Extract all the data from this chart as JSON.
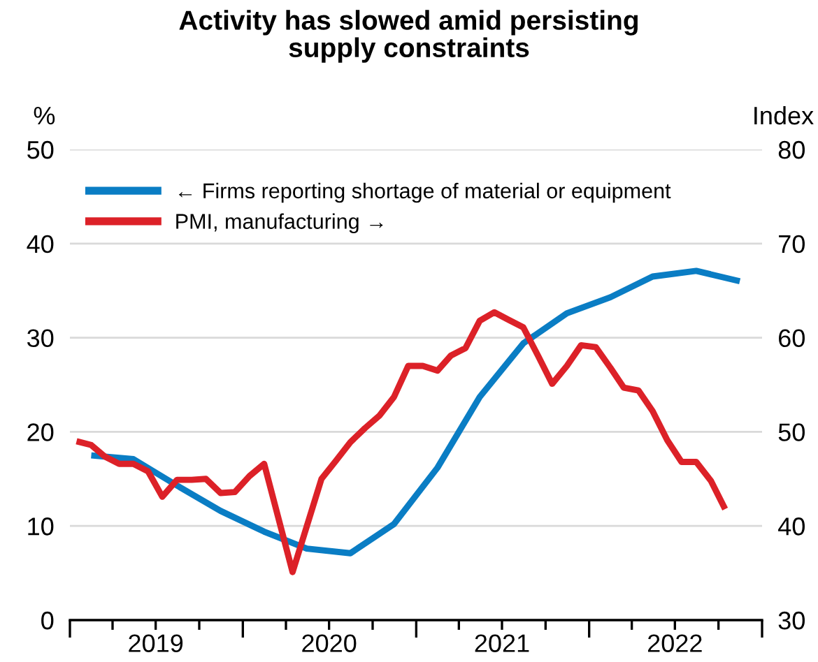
{
  "chart_data": {
    "type": "line",
    "title": "Activity has slowed amid persisting\nsupply constraints",
    "ylabel": "%",
    "y2label": "Index",
    "xlim": [
      "2019-01-01",
      "2023-01-01"
    ],
    "xticks": [
      {
        "value": "2019-01-01",
        "label": null
      },
      {
        "value": "2019-04-01",
        "label": null
      },
      {
        "value": "2019-07-01",
        "label": "2019"
      },
      {
        "value": "2019-10-01",
        "label": null
      },
      {
        "value": "2020-01-01",
        "label": null
      },
      {
        "value": "2020-04-01",
        "label": null
      },
      {
        "value": "2020-07-01",
        "label": "2020"
      },
      {
        "value": "2020-10-01",
        "label": null
      },
      {
        "value": "2021-01-01",
        "label": null
      },
      {
        "value": "2021-04-01",
        "label": null
      },
      {
        "value": "2021-07-01",
        "label": "2021"
      },
      {
        "value": "2021-10-01",
        "label": null
      },
      {
        "value": "2022-01-01",
        "label": null
      },
      {
        "value": "2022-04-01",
        "label": null
      },
      {
        "value": "2022-07-01",
        "label": "2022"
      },
      {
        "value": "2022-10-01",
        "label": null
      },
      {
        "value": "2023-01-01",
        "label": null
      }
    ],
    "ylim": [
      0,
      50
    ],
    "yticks": [
      0,
      10,
      20,
      30,
      40,
      50
    ],
    "y2lim": [
      30,
      80
    ],
    "y2ticks": [
      30,
      40,
      50,
      60,
      70,
      80
    ],
    "grid": "y",
    "legend": "top left",
    "marker": "none",
    "line_style": "solid",
    "series": [
      {
        "name": "← Firms reporting shortage of material or equipment",
        "color": "#0a7dc4",
        "x": [
          "2019-02-15",
          "2019-05-15",
          "2019-08-15",
          "2019-11-15",
          "2020-02-15",
          "2020-05-15",
          "2020-08-15",
          "2020-11-15",
          "2021-02-15",
          "2021-05-15",
          "2021-08-15",
          "2021-11-15",
          "2022-02-15",
          "2022-05-15",
          "2022-08-15",
          "2022-11-15"
        ],
        "values": [
          17.5,
          17.1,
          14.3,
          11.6,
          9.4,
          7.6,
          7.1,
          10.2,
          16.2,
          23.7,
          29.4,
          32.6,
          34.3,
          36.5,
          37.1,
          36.0
        ]
      },
      {
        "name": "PMI, manufacturing →",
        "color": "#dc2128",
        "axis": "y2",
        "x": [
          "2019-01-15",
          "2019-02-15",
          "2019-03-15",
          "2019-04-15",
          "2019-05-15",
          "2019-06-15",
          "2019-07-15",
          "2019-08-15",
          "2019-09-15",
          "2019-10-15",
          "2019-11-15",
          "2019-12-15",
          "2020-01-15",
          "2020-02-15",
          "2020-04-15",
          "2020-06-15",
          "2020-07-15",
          "2020-08-15",
          "2020-09-15",
          "2020-10-15",
          "2020-11-15",
          "2020-12-15",
          "2021-01-15",
          "2021-02-15",
          "2021-03-15",
          "2021-04-15",
          "2021-05-15",
          "2021-06-15",
          "2021-07-15",
          "2021-08-15",
          "2021-09-15",
          "2021-10-15",
          "2021-11-15",
          "2021-12-15",
          "2022-01-15",
          "2022-02-15",
          "2022-03-15",
          "2022-04-15",
          "2022-05-15",
          "2022-06-15",
          "2022-07-15",
          "2022-08-15",
          "2022-09-15",
          "2022-10-15"
        ],
        "values": [
          49.0,
          48.6,
          47.4,
          46.6,
          46.6,
          45.8,
          43.1,
          44.9,
          44.9,
          45.0,
          43.5,
          43.6,
          45.3,
          46.6,
          35.1,
          45.0,
          46.9,
          48.9,
          50.4,
          51.7,
          53.7,
          57.0,
          57.0,
          56.5,
          58.1,
          58.9,
          61.8,
          62.7,
          61.9,
          61.1,
          58.1,
          55.1,
          57.0,
          59.2,
          59.0,
          56.8,
          54.7,
          54.4,
          52.2,
          49.1,
          46.8,
          46.8,
          44.8,
          41.8
        ]
      }
    ]
  }
}
